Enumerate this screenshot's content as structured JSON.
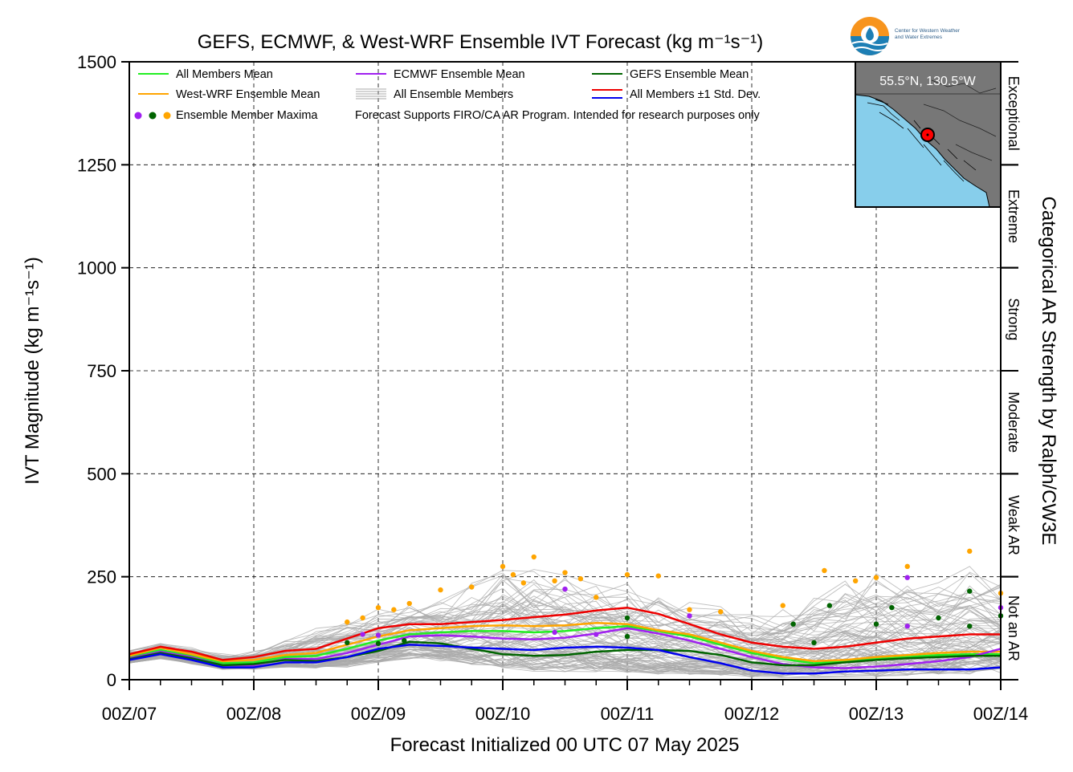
{
  "chart_data": {
    "type": "line",
    "title": "GEFS, ECMWF, & West-WRF Ensemble IVT Forecast (kg m⁻¹s⁻¹)",
    "xlabel": "Forecast Initialized 00 UTC 07 May 2025",
    "ylabel": "IVT Magnitude (kg m⁻¹s⁻¹)",
    "right_label": "Categorical AR Strength by Ralph/CW3E",
    "ylim": [
      0,
      1500
    ],
    "yticks": [
      "0",
      "250",
      "500",
      "750",
      "1000",
      "1250",
      "1500"
    ],
    "xlim": [
      0,
      168
    ],
    "xticks": [
      {
        "hour": 0,
        "label": "00Z/07"
      },
      {
        "hour": 24,
        "label": "00Z/08"
      },
      {
        "hour": 48,
        "label": "00Z/09"
      },
      {
        "hour": 72,
        "label": "00Z/10"
      },
      {
        "hour": 96,
        "label": "00Z/11"
      },
      {
        "hour": 120,
        "label": "00Z/12"
      },
      {
        "hour": 144,
        "label": "00Z/13"
      },
      {
        "hour": 168,
        "label": "00Z/14"
      }
    ],
    "grid": true,
    "categories": [
      {
        "label": "Not an AR",
        "min": 0,
        "max": 250
      },
      {
        "label": "Weak AR",
        "min": 250,
        "max": 500
      },
      {
        "label": "Moderate",
        "min": 500,
        "max": 750
      },
      {
        "label": "Strong",
        "min": 750,
        "max": 1000
      },
      {
        "label": "Extreme",
        "min": 1000,
        "max": 1250
      },
      {
        "label": "Exceptional",
        "min": 1250,
        "max": 1500
      }
    ],
    "x": [
      0,
      6,
      12,
      18,
      24,
      30,
      36,
      42,
      48,
      54,
      60,
      66,
      72,
      78,
      84,
      90,
      96,
      102,
      108,
      114,
      120,
      126,
      132,
      138,
      144,
      150,
      156,
      162,
      168
    ],
    "series": [
      {
        "name": "All Members Mean",
        "color": "#22ee22",
        "values": [
          55,
          72,
          58,
          40,
          42,
          55,
          58,
          75,
          95,
          110,
          115,
          118,
          118,
          115,
          118,
          125,
          130,
          118,
          105,
          85,
          65,
          50,
          40,
          45,
          50,
          55,
          60,
          62,
          62
        ]
      },
      {
        "name": "West-WRF Ensemble Mean",
        "color": "#ffa500",
        "values": [
          58,
          78,
          62,
          45,
          48,
          60,
          65,
          85,
          105,
          120,
          125,
          130,
          132,
          130,
          132,
          138,
          135,
          120,
          110,
          90,
          70,
          55,
          45,
          48,
          55,
          60,
          65,
          68,
          68
        ]
      },
      {
        "name": "ECMWF Ensemble Mean",
        "color": "#a020f0",
        "values": [
          52,
          68,
          55,
          35,
          35,
          50,
          50,
          65,
          85,
          105,
          108,
          105,
          100,
          98,
          102,
          112,
          125,
          112,
          95,
          75,
          55,
          38,
          30,
          28,
          32,
          38,
          45,
          55,
          75
        ]
      },
      {
        "name": "GEFS Ensemble Mean",
        "color": "#006400",
        "values": [
          50,
          65,
          52,
          35,
          38,
          48,
          45,
          55,
          70,
          92,
          88,
          75,
          62,
          58,
          60,
          68,
          72,
          72,
          70,
          60,
          42,
          35,
          35,
          42,
          48,
          52,
          55,
          58,
          58
        ]
      },
      {
        "name": "All Members ±1 Std. Dev.",
        "color": "#ee0000",
        "values": [
          62,
          80,
          68,
          48,
          55,
          70,
          75,
          100,
          125,
          135,
          135,
          140,
          145,
          152,
          158,
          168,
          175,
          160,
          135,
          110,
          90,
          80,
          75,
          80,
          90,
          100,
          105,
          110,
          110
        ]
      },
      {
        "name": "All Members ±1 Std. Dev. (lower)",
        "color": "#0000ee",
        "values": [
          48,
          62,
          48,
          30,
          30,
          42,
          42,
          55,
          75,
          85,
          82,
          78,
          75,
          72,
          78,
          80,
          78,
          72,
          55,
          40,
          22,
          15,
          15,
          20,
          22,
          25,
          25,
          25,
          30
        ]
      }
    ],
    "ensemble_envelope": {
      "name": "All Ensemble Members",
      "color": "#aaaaaa",
      "min": [
        40,
        50,
        38,
        25,
        25,
        30,
        28,
        30,
        40,
        50,
        45,
        35,
        25,
        20,
        18,
        18,
        15,
        12,
        10,
        8,
        5,
        4,
        5,
        5,
        6,
        8,
        10,
        12,
        15
      ],
      "max": [
        75,
        90,
        80,
        65,
        75,
        100,
        130,
        150,
        175,
        200,
        210,
        240,
        280,
        300,
        270,
        250,
        240,
        220,
        200,
        190,
        170,
        180,
        210,
        260,
        270,
        260,
        250,
        300,
        240
      ]
    },
    "maxima_points": [
      {
        "x": 42,
        "y": 140,
        "color": "#ffa500"
      },
      {
        "x": 45,
        "y": 150,
        "color": "#ffa500"
      },
      {
        "x": 48,
        "y": 175,
        "color": "#ffa500"
      },
      {
        "x": 51,
        "y": 170,
        "color": "#ffa500"
      },
      {
        "x": 54,
        "y": 185,
        "color": "#ffa500"
      },
      {
        "x": 60,
        "y": 218,
        "color": "#ffa500"
      },
      {
        "x": 66,
        "y": 225,
        "color": "#ffa500"
      },
      {
        "x": 72,
        "y": 275,
        "color": "#ffa500"
      },
      {
        "x": 74,
        "y": 255,
        "color": "#ffa500"
      },
      {
        "x": 76,
        "y": 235,
        "color": "#ffa500"
      },
      {
        "x": 78,
        "y": 298,
        "color": "#ffa500"
      },
      {
        "x": 82,
        "y": 240,
        "color": "#ffa500"
      },
      {
        "x": 84,
        "y": 260,
        "color": "#ffa500"
      },
      {
        "x": 87,
        "y": 245,
        "color": "#ffa500"
      },
      {
        "x": 90,
        "y": 200,
        "color": "#ffa500"
      },
      {
        "x": 96,
        "y": 255,
        "color": "#ffa500"
      },
      {
        "x": 102,
        "y": 252,
        "color": "#ffa500"
      },
      {
        "x": 108,
        "y": 170,
        "color": "#ffa500"
      },
      {
        "x": 114,
        "y": 165,
        "color": "#ffa500"
      },
      {
        "x": 126,
        "y": 180,
        "color": "#ffa500"
      },
      {
        "x": 134,
        "y": 265,
        "color": "#ffa500"
      },
      {
        "x": 140,
        "y": 240,
        "color": "#ffa500"
      },
      {
        "x": 144,
        "y": 248,
        "color": "#ffa500"
      },
      {
        "x": 150,
        "y": 275,
        "color": "#ffa500"
      },
      {
        "x": 162,
        "y": 312,
        "color": "#ffa500"
      },
      {
        "x": 168,
        "y": 210,
        "color": "#ffa500"
      },
      {
        "x": 45,
        "y": 110,
        "color": "#a020f0"
      },
      {
        "x": 48,
        "y": 108,
        "color": "#a020f0"
      },
      {
        "x": 82,
        "y": 115,
        "color": "#a020f0"
      },
      {
        "x": 84,
        "y": 220,
        "color": "#a020f0"
      },
      {
        "x": 90,
        "y": 110,
        "color": "#a020f0"
      },
      {
        "x": 108,
        "y": 155,
        "color": "#a020f0"
      },
      {
        "x": 150,
        "y": 248,
        "color": "#a020f0"
      },
      {
        "x": 150,
        "y": 130,
        "color": "#a020f0"
      },
      {
        "x": 168,
        "y": 175,
        "color": "#a020f0"
      },
      {
        "x": 42,
        "y": 90,
        "color": "#006400"
      },
      {
        "x": 48,
        "y": 88,
        "color": "#006400"
      },
      {
        "x": 53,
        "y": 95,
        "color": "#006400"
      },
      {
        "x": 96,
        "y": 150,
        "color": "#006400"
      },
      {
        "x": 96,
        "y": 105,
        "color": "#006400"
      },
      {
        "x": 128,
        "y": 135,
        "color": "#006400"
      },
      {
        "x": 132,
        "y": 90,
        "color": "#006400"
      },
      {
        "x": 135,
        "y": 180,
        "color": "#006400"
      },
      {
        "x": 144,
        "y": 135,
        "color": "#006400"
      },
      {
        "x": 147,
        "y": 175,
        "color": "#006400"
      },
      {
        "x": 156,
        "y": 150,
        "color": "#006400"
      },
      {
        "x": 162,
        "y": 215,
        "color": "#006400"
      },
      {
        "x": 162,
        "y": 130,
        "color": "#006400"
      },
      {
        "x": 168,
        "y": 155,
        "color": "#006400"
      }
    ],
    "legend": [
      {
        "label": "All Members Mean",
        "color": "#22ee22",
        "kind": "line"
      },
      {
        "label": "ECMWF Ensemble Mean",
        "color": "#a020f0",
        "kind": "line"
      },
      {
        "label": "GEFS Ensemble Mean",
        "color": "#006400",
        "kind": "line"
      },
      {
        "label": "West-WRF Ensemble Mean",
        "color": "#ffa500",
        "kind": "line"
      },
      {
        "label": "All Ensemble Members",
        "color": "#aaaaaa",
        "kind": "multiline"
      },
      {
        "label": "All Members ±1 Std. Dev.",
        "color": "#ee0000",
        "color2": "#0000ee",
        "kind": "doubleline"
      },
      {
        "label": "Ensemble Member Maxima",
        "colors": [
          "#a020f0",
          "#006400",
          "#ffa500"
        ],
        "kind": "dots"
      },
      {
        "label": "Forecast Supports FIRO/CA AR Program. Intended for research purposes only",
        "kind": "note"
      }
    ],
    "legend_placement": "top-left",
    "inset_map": {
      "label": "55.5°N, 130.5°W",
      "placement": "top-right",
      "ocean_color": "#87ceeb",
      "land_color": "#777777",
      "marker_color": "#ff0000"
    },
    "logo_text": [
      "Center for Western Weather",
      "and Water Extremes"
    ]
  }
}
